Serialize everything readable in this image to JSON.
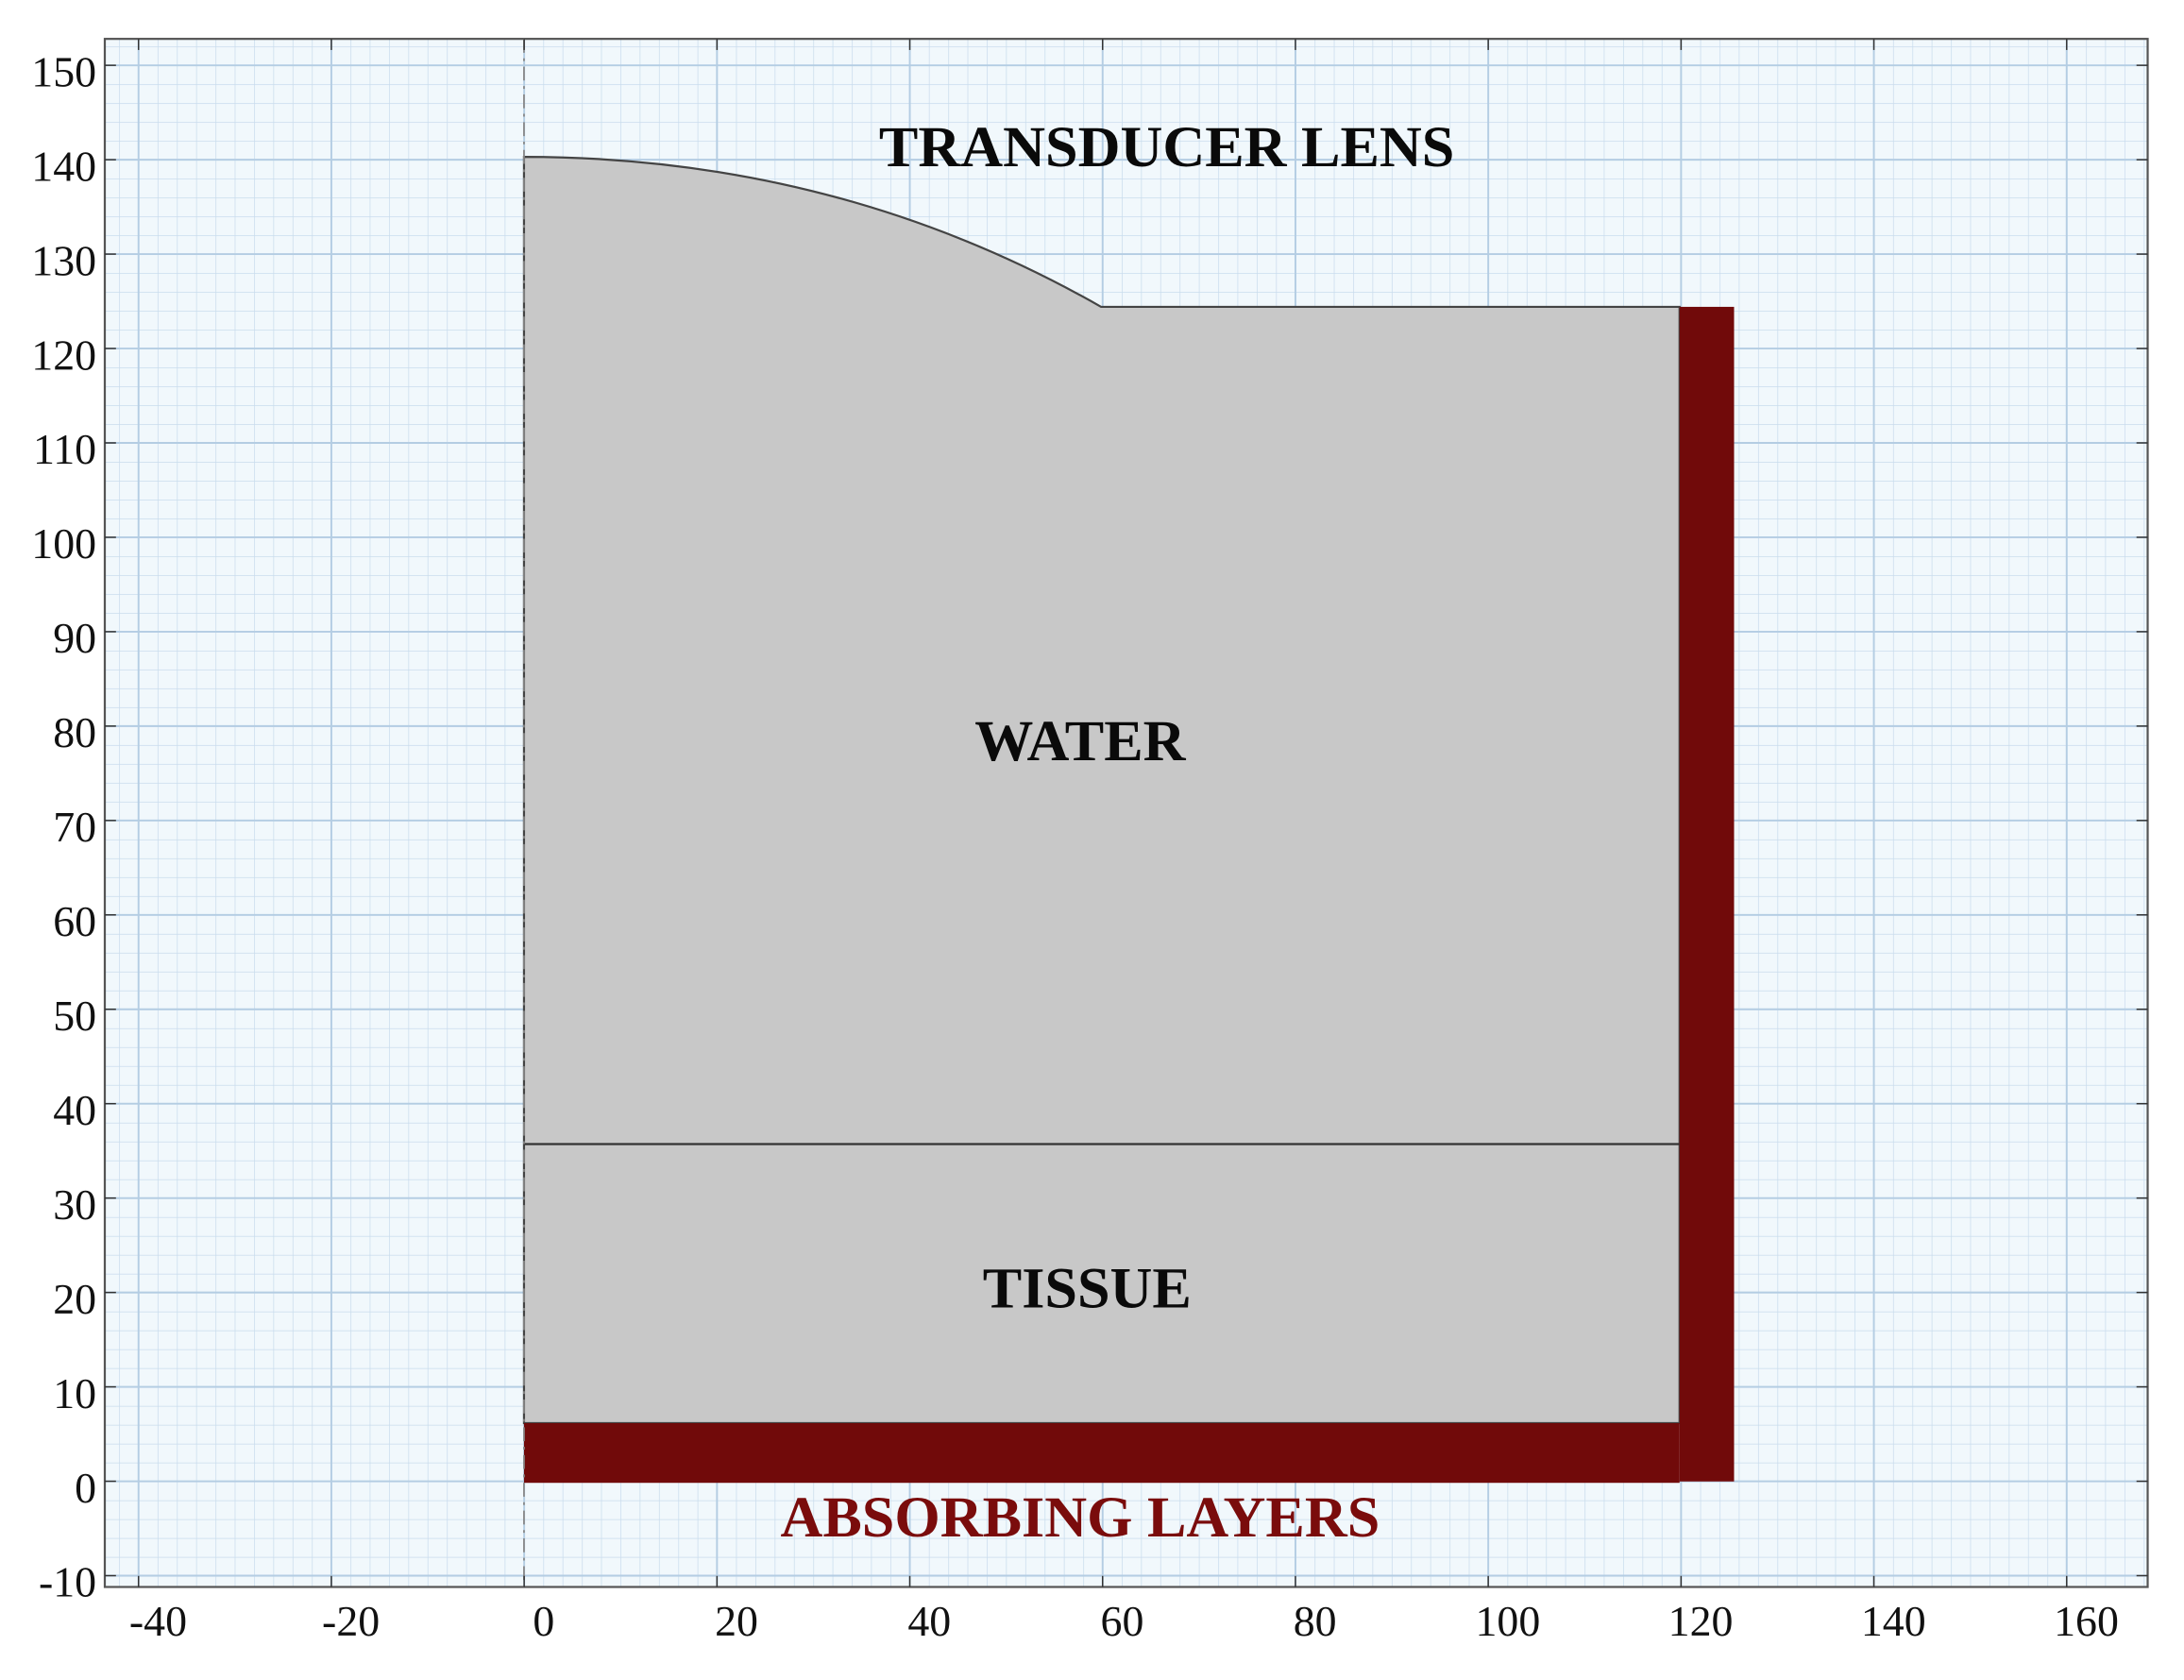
{
  "axes": {
    "xlim": [
      -43.5,
      168.4
    ],
    "ylim": [
      -11.2,
      152.8
    ],
    "xticks": [
      -40,
      -20,
      0,
      20,
      40,
      60,
      80,
      100,
      120,
      140,
      160
    ],
    "yticks": [
      -10,
      0,
      10,
      20,
      30,
      40,
      50,
      60,
      70,
      80,
      90,
      100,
      110,
      120,
      130,
      140,
      150
    ]
  },
  "labels": {
    "lens": "TRANSDUCER LENS",
    "water": "WATER",
    "tissue": "TISSUE",
    "absorbing": "ABSORBING LAYERS"
  }
}
